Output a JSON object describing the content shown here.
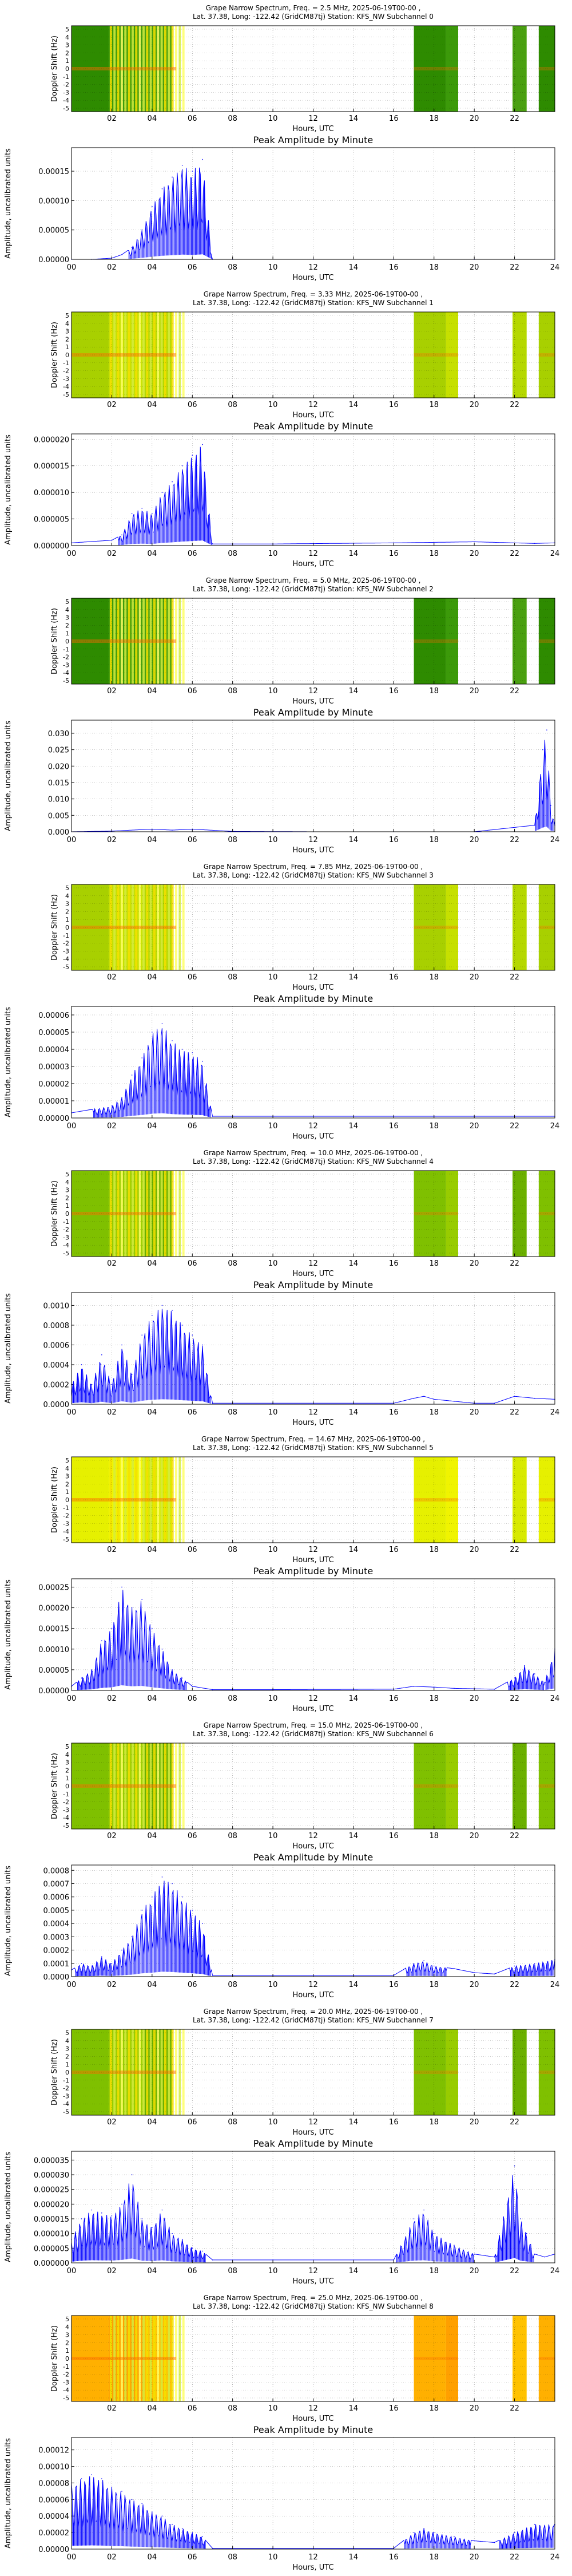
{
  "spectrogram_xticks": [
    "02",
    "04",
    "06",
    "08",
    "10",
    "12",
    "14",
    "16",
    "18",
    "20",
    "22"
  ],
  "spectrogram_yticks": [
    "5",
    "4",
    "3",
    "2",
    "1",
    "0",
    "-1",
    "-2",
    "-3",
    "-4",
    "-5"
  ],
  "spectrogram_ylabel": "Doppler Shift (Hz)",
  "xlabel": "Hours, UTC",
  "amp_xticks": [
    "00",
    "02",
    "04",
    "06",
    "08",
    "10",
    "12",
    "14",
    "16",
    "18",
    "20",
    "22",
    "24"
  ],
  "amp_title": "Peak Amplitude by Minute",
  "amp_ylabel": "Amplitude, uncalibrated units",
  "colors": {
    "signal_line": "#0000ff",
    "spec_green": "#2e8b00",
    "spec_yellow": "#e8e800",
    "spec_orange": "#ff9900"
  },
  "panels": [
    {
      "title_line1": "Grape Narrow Spectrum, Freq. = 2.5 MHz, 2025-06-19T00-00 ,",
      "title_line2": "Lat.  37.38, Long: -122.42 (GridCM87tj) Station: KFS_NW Subchannel 0",
      "spec_base": "green",
      "ytick_labels": [
        "0.00000",
        "0.00005",
        "0.00010",
        "0.00015"
      ],
      "ymax": 0.00019
    },
    {
      "title_line1": "Grape Narrow Spectrum, Freq. = 3.33 MHz, 2025-06-19T00-00 ,",
      "title_line2": "Lat.  37.38, Long: -122.42 (GridCM87tj) Station: KFS_NW Subchannel 1",
      "spec_base": "yellowgreen",
      "ytick_labels": [
        "0.000000",
        "0.000005",
        "0.000010",
        "0.000015",
        "0.000020"
      ],
      "ymax": 2.1e-05
    },
    {
      "title_line1": "Grape Narrow Spectrum, Freq. = 5.0 MHz, 2025-06-19T00-00 ,",
      "title_line2": "Lat.  37.38, Long: -122.42 (GridCM87tj) Station: KFS_NW Subchannel 2",
      "spec_base": "green",
      "ytick_labels": [
        "0.000",
        "0.005",
        "0.010",
        "0.015",
        "0.020",
        "0.025",
        "0.030"
      ],
      "ymax": 0.034
    },
    {
      "title_line1": "Grape Narrow Spectrum, Freq. = 7.85 MHz, 2025-06-19T00-00 ,",
      "title_line2": "Lat.  37.38, Long: -122.42 (GridCM87tj) Station: KFS_NW Subchannel 3",
      "spec_base": "yellowgreen",
      "ytick_labels": [
        "0.00000",
        "0.00001",
        "0.00002",
        "0.00003",
        "0.00004",
        "0.00005",
        "0.00006"
      ],
      "ymax": 6.5e-05
    },
    {
      "title_line1": "Grape Narrow Spectrum, Freq. = 10.0 MHz, 2025-06-19T00-00 ,",
      "title_line2": "Lat.  37.38, Long: -122.42 (GridCM87tj) Station: KFS_NW Subchannel 4",
      "spec_base": "greenyellow",
      "ytick_labels": [
        "0.0000",
        "0.0002",
        "0.0004",
        "0.0006",
        "0.0008",
        "0.0010"
      ],
      "ymax": 0.00113
    },
    {
      "title_line1": "Grape Narrow Spectrum, Freq. = 14.67 MHz, 2025-06-19T00-00 ,",
      "title_line2": "Lat.  37.38, Long: -122.42 (GridCM87tj) Station: KFS_NW Subchannel 5",
      "spec_base": "yellow",
      "ytick_labels": [
        "0.00000",
        "0.00005",
        "0.00010",
        "0.00015",
        "0.00020",
        "0.00025"
      ],
      "ymax": 0.00027
    },
    {
      "title_line1": "Grape Narrow Spectrum, Freq. = 15.0 MHz, 2025-06-19T00-00 ,",
      "title_line2": "Lat.  37.38, Long: -122.42 (GridCM87tj) Station: KFS_NW Subchannel 6",
      "spec_base": "greenyellow",
      "ytick_labels": [
        "0.0000",
        "0.0001",
        "0.0002",
        "0.0003",
        "0.0004",
        "0.0005",
        "0.0006",
        "0.0007",
        "0.0008"
      ],
      "ymax": 0.00084
    },
    {
      "title_line1": "Grape Narrow Spectrum, Freq. = 20.0 MHz, 2025-06-19T00-00 ,",
      "title_line2": "Lat.  37.38, Long: -122.42 (GridCM87tj) Station: KFS_NW Subchannel 7",
      "spec_base": "greenyellow",
      "ytick_labels": [
        "0.000000",
        "0.000005",
        "0.000010",
        "0.000015",
        "0.000020",
        "0.000025",
        "0.000030",
        "0.000035"
      ],
      "ymax": 3.8e-05
    },
    {
      "title_line1": "Grape Narrow Spectrum, Freq. = 25.0 MHz, 2025-06-19T00-00 ,",
      "title_line2": "Lat.  37.38, Long: -122.42 (GridCM87tj) Station: KFS_NW Subchannel 8",
      "spec_base": "orange",
      "ytick_labels": [
        "0.00000",
        "0.00002",
        "0.00004",
        "0.00006",
        "0.00008",
        "0.00010",
        "0.00012"
      ],
      "ymax": 0.000135
    }
  ],
  "chart_data": [
    {
      "type": "line",
      "title": "Peak Amplitude by Minute",
      "xlabel": "Hours, UTC",
      "ylabel": "Amplitude, uncalibrated units",
      "xlim": [
        0,
        24
      ],
      "ylim": [
        0,
        0.00019
      ],
      "series": [
        {
          "x": [
            0,
            1,
            2,
            2.5,
            3,
            3.5,
            4,
            4.5,
            5,
            5.5,
            6,
            6.5,
            7,
            8,
            12,
            16,
            20,
            24
          ],
          "y": [
            0,
            0,
            2e-06,
            8e-06,
            2e-05,
            5e-05,
            9e-05,
            0.00012,
            0.00014,
            0.00016,
            0.00015,
            0.00017,
            0,
            0,
            0,
            0,
            0,
            0
          ]
        }
      ]
    },
    {
      "type": "line",
      "title": "Peak Amplitude by Minute",
      "xlabel": "Hours, UTC",
      "ylabel": "Amplitude, uncalibrated units",
      "xlim": [
        0,
        24
      ],
      "ylim": [
        0,
        2.1e-05
      ],
      "series": [
        {
          "x": [
            0,
            2,
            2.5,
            3,
            3.5,
            4,
            4.5,
            5,
            5.5,
            6,
            6.5,
            7,
            10,
            16,
            20,
            23,
            24
          ],
          "y": [
            5e-07,
            1e-06,
            2e-06,
            6e-06,
            7e-06,
            6e-06,
            1e-05,
            1.2e-05,
            1.5e-05,
            1.7e-05,
            1.9e-05,
            3e-07,
            3e-07,
            5e-07,
            7e-07,
            4e-07,
            5e-07
          ]
        }
      ]
    },
    {
      "type": "line",
      "title": "Peak Amplitude by Minute",
      "xlabel": "Hours, UTC",
      "ylabel": "Amplitude, uncalibrated units",
      "xlim": [
        0,
        24
      ],
      "ylim": [
        0,
        0.034
      ],
      "series": [
        {
          "x": [
            0,
            2,
            4,
            5,
            6,
            8,
            12,
            16,
            20,
            23,
            23.4,
            23.6,
            23.8,
            24
          ],
          "y": [
            0,
            0.0002,
            0.0008,
            0.0005,
            0.0008,
            0.0001,
            0,
            0,
            0,
            0.002,
            0.025,
            0.031,
            0.008,
            0.002
          ]
        }
      ]
    },
    {
      "type": "line",
      "title": "Peak Amplitude by Minute",
      "xlabel": "Hours, UTC",
      "ylabel": "Amplitude, uncalibrated units",
      "xlim": [
        0,
        24
      ],
      "ylim": [
        0,
        6.5e-05
      ],
      "series": [
        {
          "x": [
            0,
            1,
            2,
            2.5,
            3,
            3.5,
            4,
            4.5,
            5,
            5.5,
            6,
            6.5,
            7,
            10,
            16,
            24
          ],
          "y": [
            3e-06,
            5e-06,
            7e-06,
            1.2e-05,
            2.5e-05,
            3.5e-05,
            5e-05,
            5.5e-05,
            4.5e-05,
            4e-05,
            3.8e-05,
            3.3e-05,
            1e-06,
            1e-06,
            1e-06,
            1e-06
          ]
        }
      ]
    },
    {
      "type": "line",
      "title": "Peak Amplitude by Minute",
      "xlabel": "Hours, UTC",
      "ylabel": "Amplitude, uncalibrated units",
      "xlim": [
        0,
        24
      ],
      "ylim": [
        0,
        0.00113
      ],
      "series": [
        {
          "x": [
            0,
            0.5,
            1,
            1.5,
            2,
            2.5,
            3,
            3.5,
            4,
            4.5,
            5,
            5.5,
            6,
            6.5,
            7,
            10,
            16,
            17,
            17.5,
            18,
            19,
            20,
            21,
            22,
            23,
            24
          ],
          "y": [
            0.0002,
            0.0004,
            0.0002,
            0.0005,
            0.0002,
            0.0006,
            0.0003,
            0.0007,
            0.0009,
            0.001,
            0.00095,
            0.0008,
            0.0007,
            0.0006,
            1e-05,
            1e-05,
            1e-05,
            6e-05,
            8e-05,
            5e-05,
            3e-05,
            1e-05,
            1e-05,
            8e-05,
            6e-05,
            5e-05
          ]
        }
      ]
    },
    {
      "type": "line",
      "title": "Peak Amplitude by Minute",
      "xlabel": "Hours, UTC",
      "ylabel": "Amplitude, uncalibrated units",
      "xlim": [
        0,
        24
      ],
      "ylim": [
        0,
        0.00027
      ],
      "series": [
        {
          "x": [
            0,
            0.5,
            1,
            1.5,
            2,
            2.5,
            3,
            3.5,
            4,
            4.5,
            5,
            5.5,
            6,
            7,
            10,
            16,
            17,
            18,
            19,
            20,
            21,
            22,
            22.5,
            23,
            23.5,
            24
          ],
          "y": [
            1e-05,
            3e-05,
            5e-05,
            0.00012,
            0.00015,
            0.00025,
            0.0002,
            0.00022,
            0.00015,
            0.0001,
            5e-05,
            3e-05,
            1e-05,
            2e-06,
            2e-06,
            3e-06,
            1e-05,
            8e-06,
            5e-06,
            4e-06,
            3e-06,
            3e-05,
            6e-05,
            4e-05,
            2e-05,
            0.0001
          ]
        }
      ]
    },
    {
      "type": "line",
      "title": "Peak Amplitude by Minute",
      "xlabel": "Hours, UTC",
      "ylabel": "Amplitude, uncalibrated units",
      "xlim": [
        0,
        24
      ],
      "ylim": [
        0,
        0.00084
      ],
      "series": [
        {
          "x": [
            0,
            0.5,
            1,
            1.5,
            2,
            2.5,
            3,
            3.5,
            4,
            4.5,
            5,
            5.5,
            6,
            6.5,
            7,
            10,
            16,
            17,
            17.5,
            18,
            19,
            20,
            21,
            22,
            23,
            24
          ],
          "y": [
            5e-05,
            0.0001,
            8e-05,
            0.00015,
            0.0001,
            0.0002,
            0.0003,
            0.0005,
            0.0006,
            0.00075,
            0.0007,
            0.0006,
            0.0005,
            0.0004,
            1e-05,
            1e-05,
            1e-05,
            0.0001,
            0.00012,
            8e-05,
            6e-05,
            3e-05,
            2e-05,
            8e-05,
            0.0001,
            0.00013
          ]
        }
      ]
    },
    {
      "type": "line",
      "title": "Peak Amplitude by Minute",
      "xlabel": "Hours, UTC",
      "ylabel": "Amplitude, uncalibrated units",
      "xlim": [
        0,
        24
      ],
      "ylim": [
        0,
        3.8e-05
      ],
      "series": [
        {
          "x": [
            0,
            0.5,
            1,
            1.5,
            2,
            2.5,
            3,
            3.5,
            4,
            4.5,
            5,
            5.5,
            6,
            6.5,
            7,
            10,
            16,
            17,
            17.5,
            18,
            19,
            20,
            21,
            22,
            22.3,
            22.6,
            23,
            23.5,
            24
          ],
          "y": [
            8e-06,
            1.5e-05,
            1.8e-05,
            1.7e-05,
            1.6e-05,
            2e-05,
            3e-05,
            1.5e-05,
            1.2e-05,
            1.8e-05,
            1e-05,
            8e-06,
            5e-06,
            4e-06,
            1e-06,
            1e-06,
            1e-06,
            1.5e-05,
            1.8e-05,
            1e-05,
            6e-06,
            3e-06,
            2e-06,
            3.3e-05,
            1.5e-05,
            1e-05,
            3e-06,
            2e-06,
            3e-06
          ]
        }
      ]
    },
    {
      "type": "line",
      "title": "Peak Amplitude by Minute",
      "xlabel": "Hours, UTC",
      "ylabel": "Amplitude, uncalibrated units",
      "xlim": [
        0,
        24
      ],
      "ylim": [
        0,
        0.000135
      ],
      "series": [
        {
          "x": [
            0,
            0.5,
            1,
            1.5,
            2,
            2.5,
            3,
            3.5,
            4,
            4.5,
            5,
            5.5,
            6,
            6.5,
            7,
            10,
            16,
            17,
            17.5,
            18,
            19,
            20,
            21,
            22,
            23,
            24
          ],
          "y": [
            8e-05,
            8.5e-05,
            9e-05,
            8.5e-05,
            7.5e-05,
            7e-05,
            6e-05,
            5.5e-05,
            4.5e-05,
            4e-05,
            3e-05,
            2.5e-05,
            2e-05,
            1.5e-05,
            1e-06,
            1e-06,
            1e-06,
            2e-05,
            2.5e-05,
            2e-05,
            1.5e-05,
            1e-05,
            8e-06,
            2e-05,
            3e-05,
            3e-05
          ]
        }
      ]
    }
  ]
}
